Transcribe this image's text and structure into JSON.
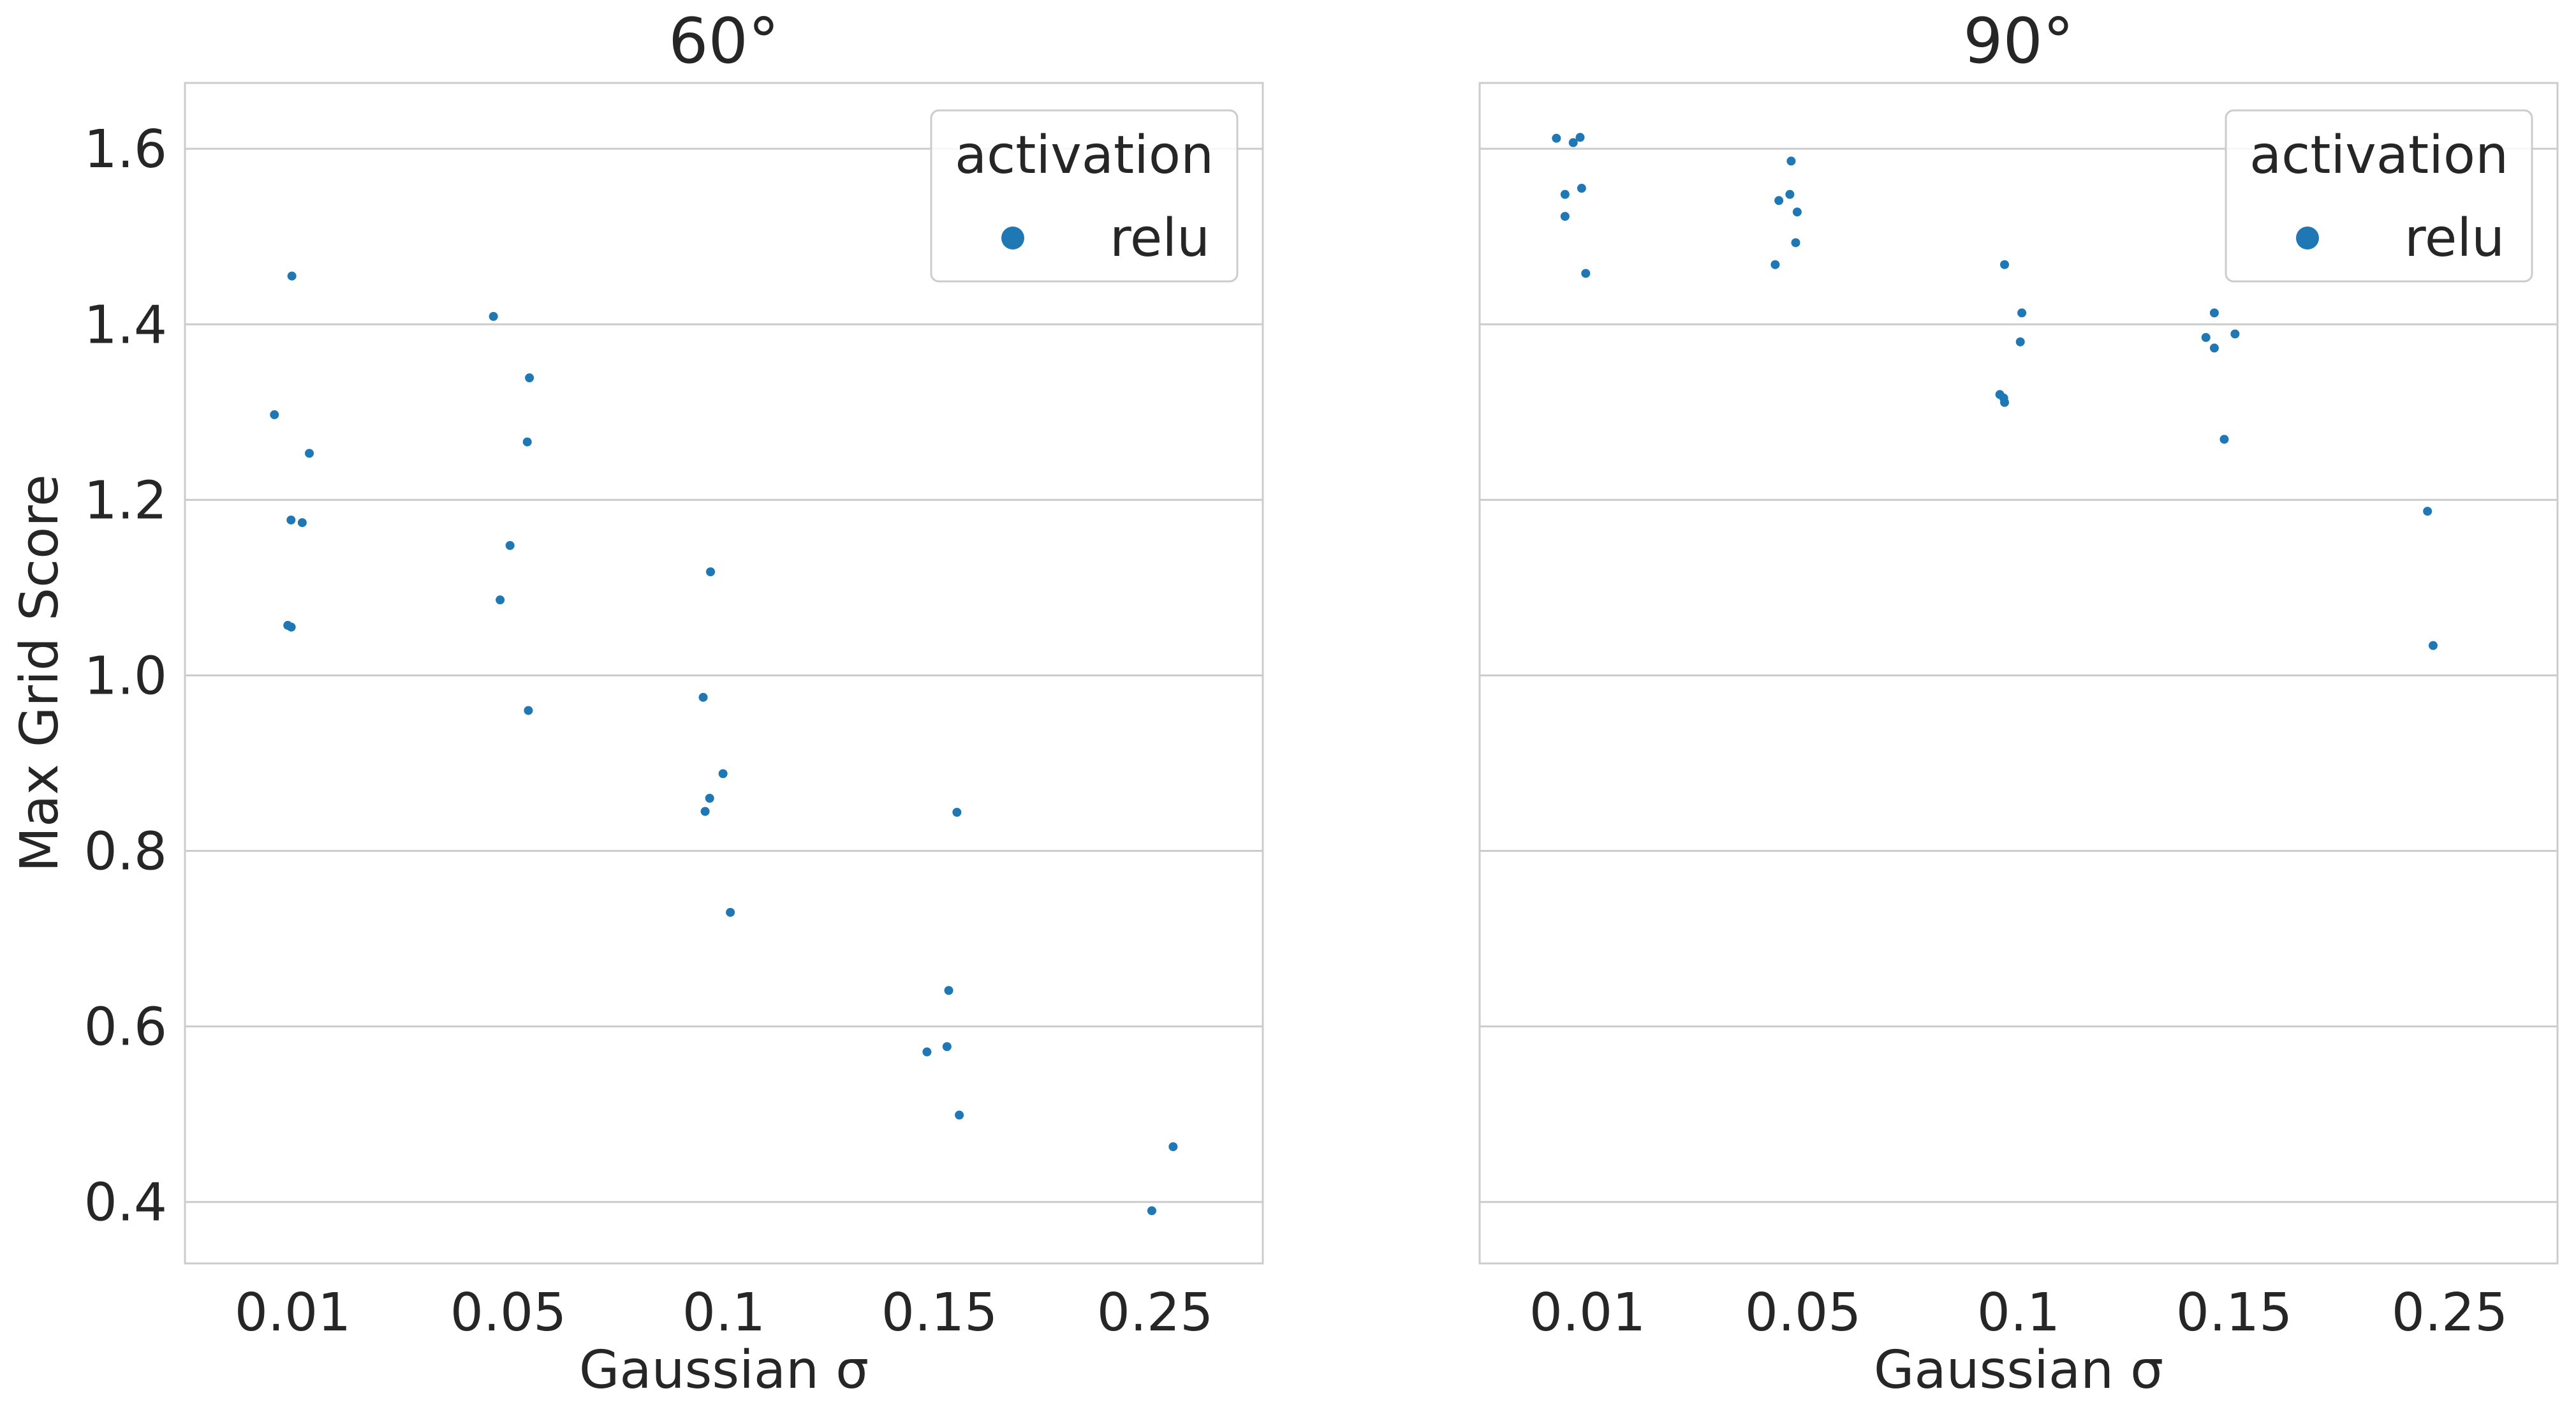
{
  "chart_data": [
    {
      "type": "scatter",
      "title": "60°",
      "xlabel": "Gaussian σ",
      "ylabel": "Max Grid Score",
      "categories": [
        "0.01",
        "0.05",
        "0.1",
        "0.15",
        "0.25"
      ],
      "ylim": [
        0.33,
        1.675
      ],
      "yticks": [
        "0.4",
        "0.6",
        "0.8",
        "1.0",
        "1.2",
        "1.4",
        "1.6"
      ],
      "grid": "horizontal",
      "legend": {
        "title": "activation",
        "entries": [
          "relu"
        ],
        "placement": "top-right"
      },
      "series": [
        {
          "name": "relu",
          "color": "#1f77b4",
          "points": [
            {
              "x": "0.01",
              "y": 1.455,
              "jitter": -0.004
            },
            {
              "x": "0.01",
              "y": 1.297,
              "jitter": -0.085
            },
            {
              "x": "0.01",
              "y": 1.253,
              "jitter": 0.077
            },
            {
              "x": "0.01",
              "y": 1.177,
              "jitter": -0.008
            },
            {
              "x": "0.01",
              "y": 1.174,
              "jitter": 0.044
            },
            {
              "x": "0.01",
              "y": 1.057,
              "jitter": -0.023
            },
            {
              "x": "0.01",
              "y": 1.055,
              "jitter": -0.007
            },
            {
              "x": "0.05",
              "y": 1.409,
              "jitter": -0.069
            },
            {
              "x": "0.05",
              "y": 1.339,
              "jitter": 0.098
            },
            {
              "x": "0.05",
              "y": 1.266,
              "jitter": 0.088
            },
            {
              "x": "0.05",
              "y": 1.148,
              "jitter": 0.008
            },
            {
              "x": "0.05",
              "y": 1.086,
              "jitter": -0.038
            },
            {
              "x": "0.05",
              "y": 0.96,
              "jitter": 0.093
            },
            {
              "x": "0.1",
              "y": 1.118,
              "jitter": -0.062
            },
            {
              "x": "0.1",
              "y": 0.975,
              "jitter": -0.096
            },
            {
              "x": "0.1",
              "y": 0.888,
              "jitter": -0.004
            },
            {
              "x": "0.1",
              "y": 0.86,
              "jitter": -0.066
            },
            {
              "x": "0.1",
              "y": 0.845,
              "jitter": -0.087
            },
            {
              "x": "0.1",
              "y": 0.73,
              "jitter": 0.03
            },
            {
              "x": "0.15",
              "y": 0.844,
              "jitter": 0.081
            },
            {
              "x": "0.15",
              "y": 0.641,
              "jitter": 0.043
            },
            {
              "x": "0.15",
              "y": 0.577,
              "jitter": 0.035
            },
            {
              "x": "0.15",
              "y": 0.571,
              "jitter": -0.058
            },
            {
              "x": "0.15",
              "y": 0.499,
              "jitter": 0.092
            },
            {
              "x": "0.25",
              "y": 0.463,
              "jitter": 0.084
            },
            {
              "x": "0.25",
              "y": 0.39,
              "jitter": -0.015
            }
          ]
        }
      ]
    },
    {
      "type": "scatter",
      "title": "90°",
      "xlabel": "Gaussian σ",
      "ylabel": "",
      "categories": [
        "0.01",
        "0.05",
        "0.1",
        "0.15",
        "0.25"
      ],
      "ylim": [
        0.33,
        1.675
      ],
      "yticks": [],
      "grid": "horizontal",
      "legend": {
        "title": "activation",
        "entries": [
          "relu"
        ],
        "placement": "top-right"
      },
      "series": [
        {
          "name": "relu",
          "color": "#1f77b4",
          "points": [
            {
              "x": "0.01",
              "y": 1.612,
              "jitter": -0.144
            },
            {
              "x": "0.01",
              "y": 1.613,
              "jitter": -0.034
            },
            {
              "x": "0.01",
              "y": 1.607,
              "jitter": -0.066
            },
            {
              "x": "0.01",
              "y": 1.555,
              "jitter": -0.027
            },
            {
              "x": "0.01",
              "y": 1.548,
              "jitter": -0.104
            },
            {
              "x": "0.01",
              "y": 1.523,
              "jitter": -0.104
            },
            {
              "x": "0.01",
              "y": 1.458,
              "jitter": -0.008
            },
            {
              "x": "0.05",
              "y": 1.586,
              "jitter": -0.055
            },
            {
              "x": "0.05",
              "y": 1.548,
              "jitter": -0.061
            },
            {
              "x": "0.05",
              "y": 1.541,
              "jitter": -0.112
            },
            {
              "x": "0.05",
              "y": 1.528,
              "jitter": -0.027
            },
            {
              "x": "0.05",
              "y": 1.493,
              "jitter": -0.034
            },
            {
              "x": "0.05",
              "y": 1.468,
              "jitter": -0.129
            },
            {
              "x": "0.1",
              "y": 1.468,
              "jitter": -0.065
            },
            {
              "x": "0.1",
              "y": 1.413,
              "jitter": 0.015
            },
            {
              "x": "0.1",
              "y": 1.38,
              "jitter": 0.008
            },
            {
              "x": "0.1",
              "y": 1.32,
              "jitter": -0.087
            },
            {
              "x": "0.1",
              "y": 1.316,
              "jitter": -0.069
            },
            {
              "x": "0.1",
              "y": 1.311,
              "jitter": -0.065
            },
            {
              "x": "0.15",
              "y": 1.413,
              "jitter": -0.092
            },
            {
              "x": "0.15",
              "y": 1.389,
              "jitter": 0.004
            },
            {
              "x": "0.15",
              "y": 1.385,
              "jitter": -0.131
            },
            {
              "x": "0.15",
              "y": 1.373,
              "jitter": -0.092
            },
            {
              "x": "0.15",
              "y": 1.269,
              "jitter": -0.046
            },
            {
              "x": "0.25",
              "y": 1.187,
              "jitter": -0.103
            },
            {
              "x": "0.25",
              "y": 1.034,
              "jitter": -0.077
            }
          ]
        }
      ]
    }
  ]
}
